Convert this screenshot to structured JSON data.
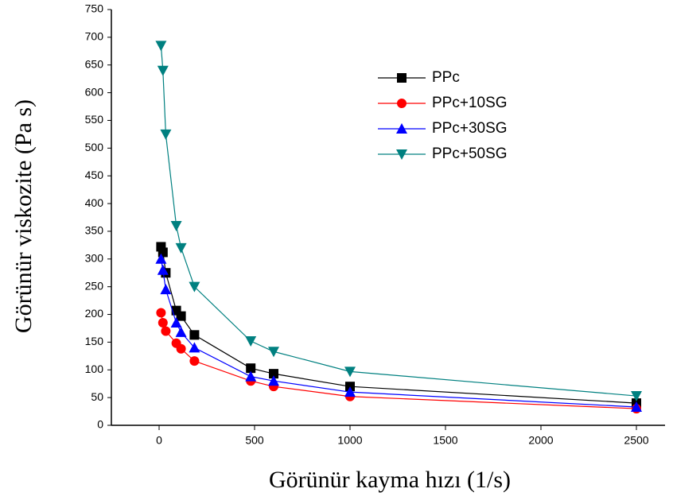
{
  "chart_data": {
    "type": "line",
    "x_label": "Görünür kayma hızı (1/s)",
    "y_label": "Görünür viskozite (Pa s)",
    "x": [
      10,
      20,
      35,
      90,
      115,
      185,
      480,
      600,
      1000,
      2500
    ],
    "series": [
      {
        "name": "PPc",
        "color": "#000000",
        "marker": "square",
        "values": [
          322,
          312,
          275,
          207,
          197,
          163,
          103,
          93,
          70,
          40
        ]
      },
      {
        "name": "PPc+10SG",
        "color": "#ff0000",
        "marker": "circle",
        "values": [
          203,
          185,
          170,
          148,
          138,
          116,
          80,
          70,
          52,
          30
        ]
      },
      {
        "name": "PPc+30SG",
        "color": "#0000ff",
        "marker": "triangle-up",
        "values": [
          300,
          280,
          245,
          185,
          168,
          140,
          88,
          80,
          60,
          33
        ]
      },
      {
        "name": "PPc+50SG",
        "color": "#008080",
        "marker": "triangle-down",
        "values": [
          685,
          640,
          525,
          360,
          320,
          250,
          152,
          133,
          97,
          53
        ]
      }
    ],
    "xlim": [
      -250,
      2650
    ],
    "ylim": [
      0,
      750
    ],
    "xticks": [
      0,
      500,
      1000,
      1500,
      2000,
      2500
    ],
    "yticks": [
      0,
      50,
      100,
      150,
      200,
      250,
      300,
      350,
      400,
      450,
      500,
      550,
      600,
      650,
      700,
      750
    ],
    "legend": "upper-right"
  }
}
